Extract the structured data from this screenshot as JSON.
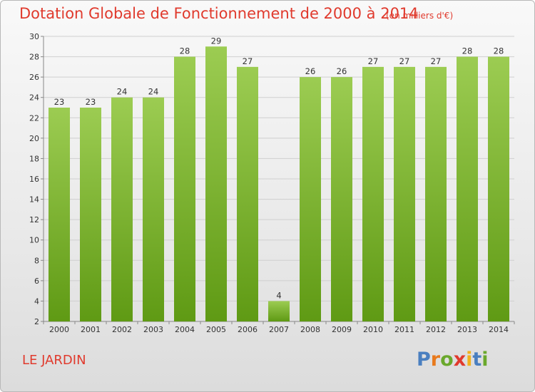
{
  "header": {
    "title": "Dotation Globale de Fonctionnement de 2000 à 2014",
    "subtitle": "(en milliers d'€)"
  },
  "footer": {
    "commune": "LE JARDIN",
    "logo_text": "Proxiti"
  },
  "colors": {
    "title": "#e03a2d",
    "bar_top": "#9ccc52",
    "bar_bottom": "#5f9a14",
    "logo_letters": [
      "#4a7fc0",
      "#e87a1d",
      "#6aa82c",
      "#e03a2d",
      "#f2b21b",
      "#4a7fc0",
      "#6aa82c"
    ]
  },
  "chart_data": {
    "type": "bar",
    "categories": [
      "2000",
      "2001",
      "2002",
      "2003",
      "2004",
      "2005",
      "2006",
      "2007",
      "2008",
      "2009",
      "2010",
      "2011",
      "2012",
      "2013",
      "2014"
    ],
    "values": [
      23,
      23,
      24,
      24,
      28,
      29,
      27,
      4,
      26,
      26,
      27,
      27,
      27,
      28,
      28
    ],
    "ylim": [
      2,
      30
    ],
    "yticks": [
      2,
      4,
      6,
      8,
      10,
      12,
      14,
      16,
      18,
      20,
      22,
      24,
      26,
      28,
      30
    ],
    "grid": true
  }
}
